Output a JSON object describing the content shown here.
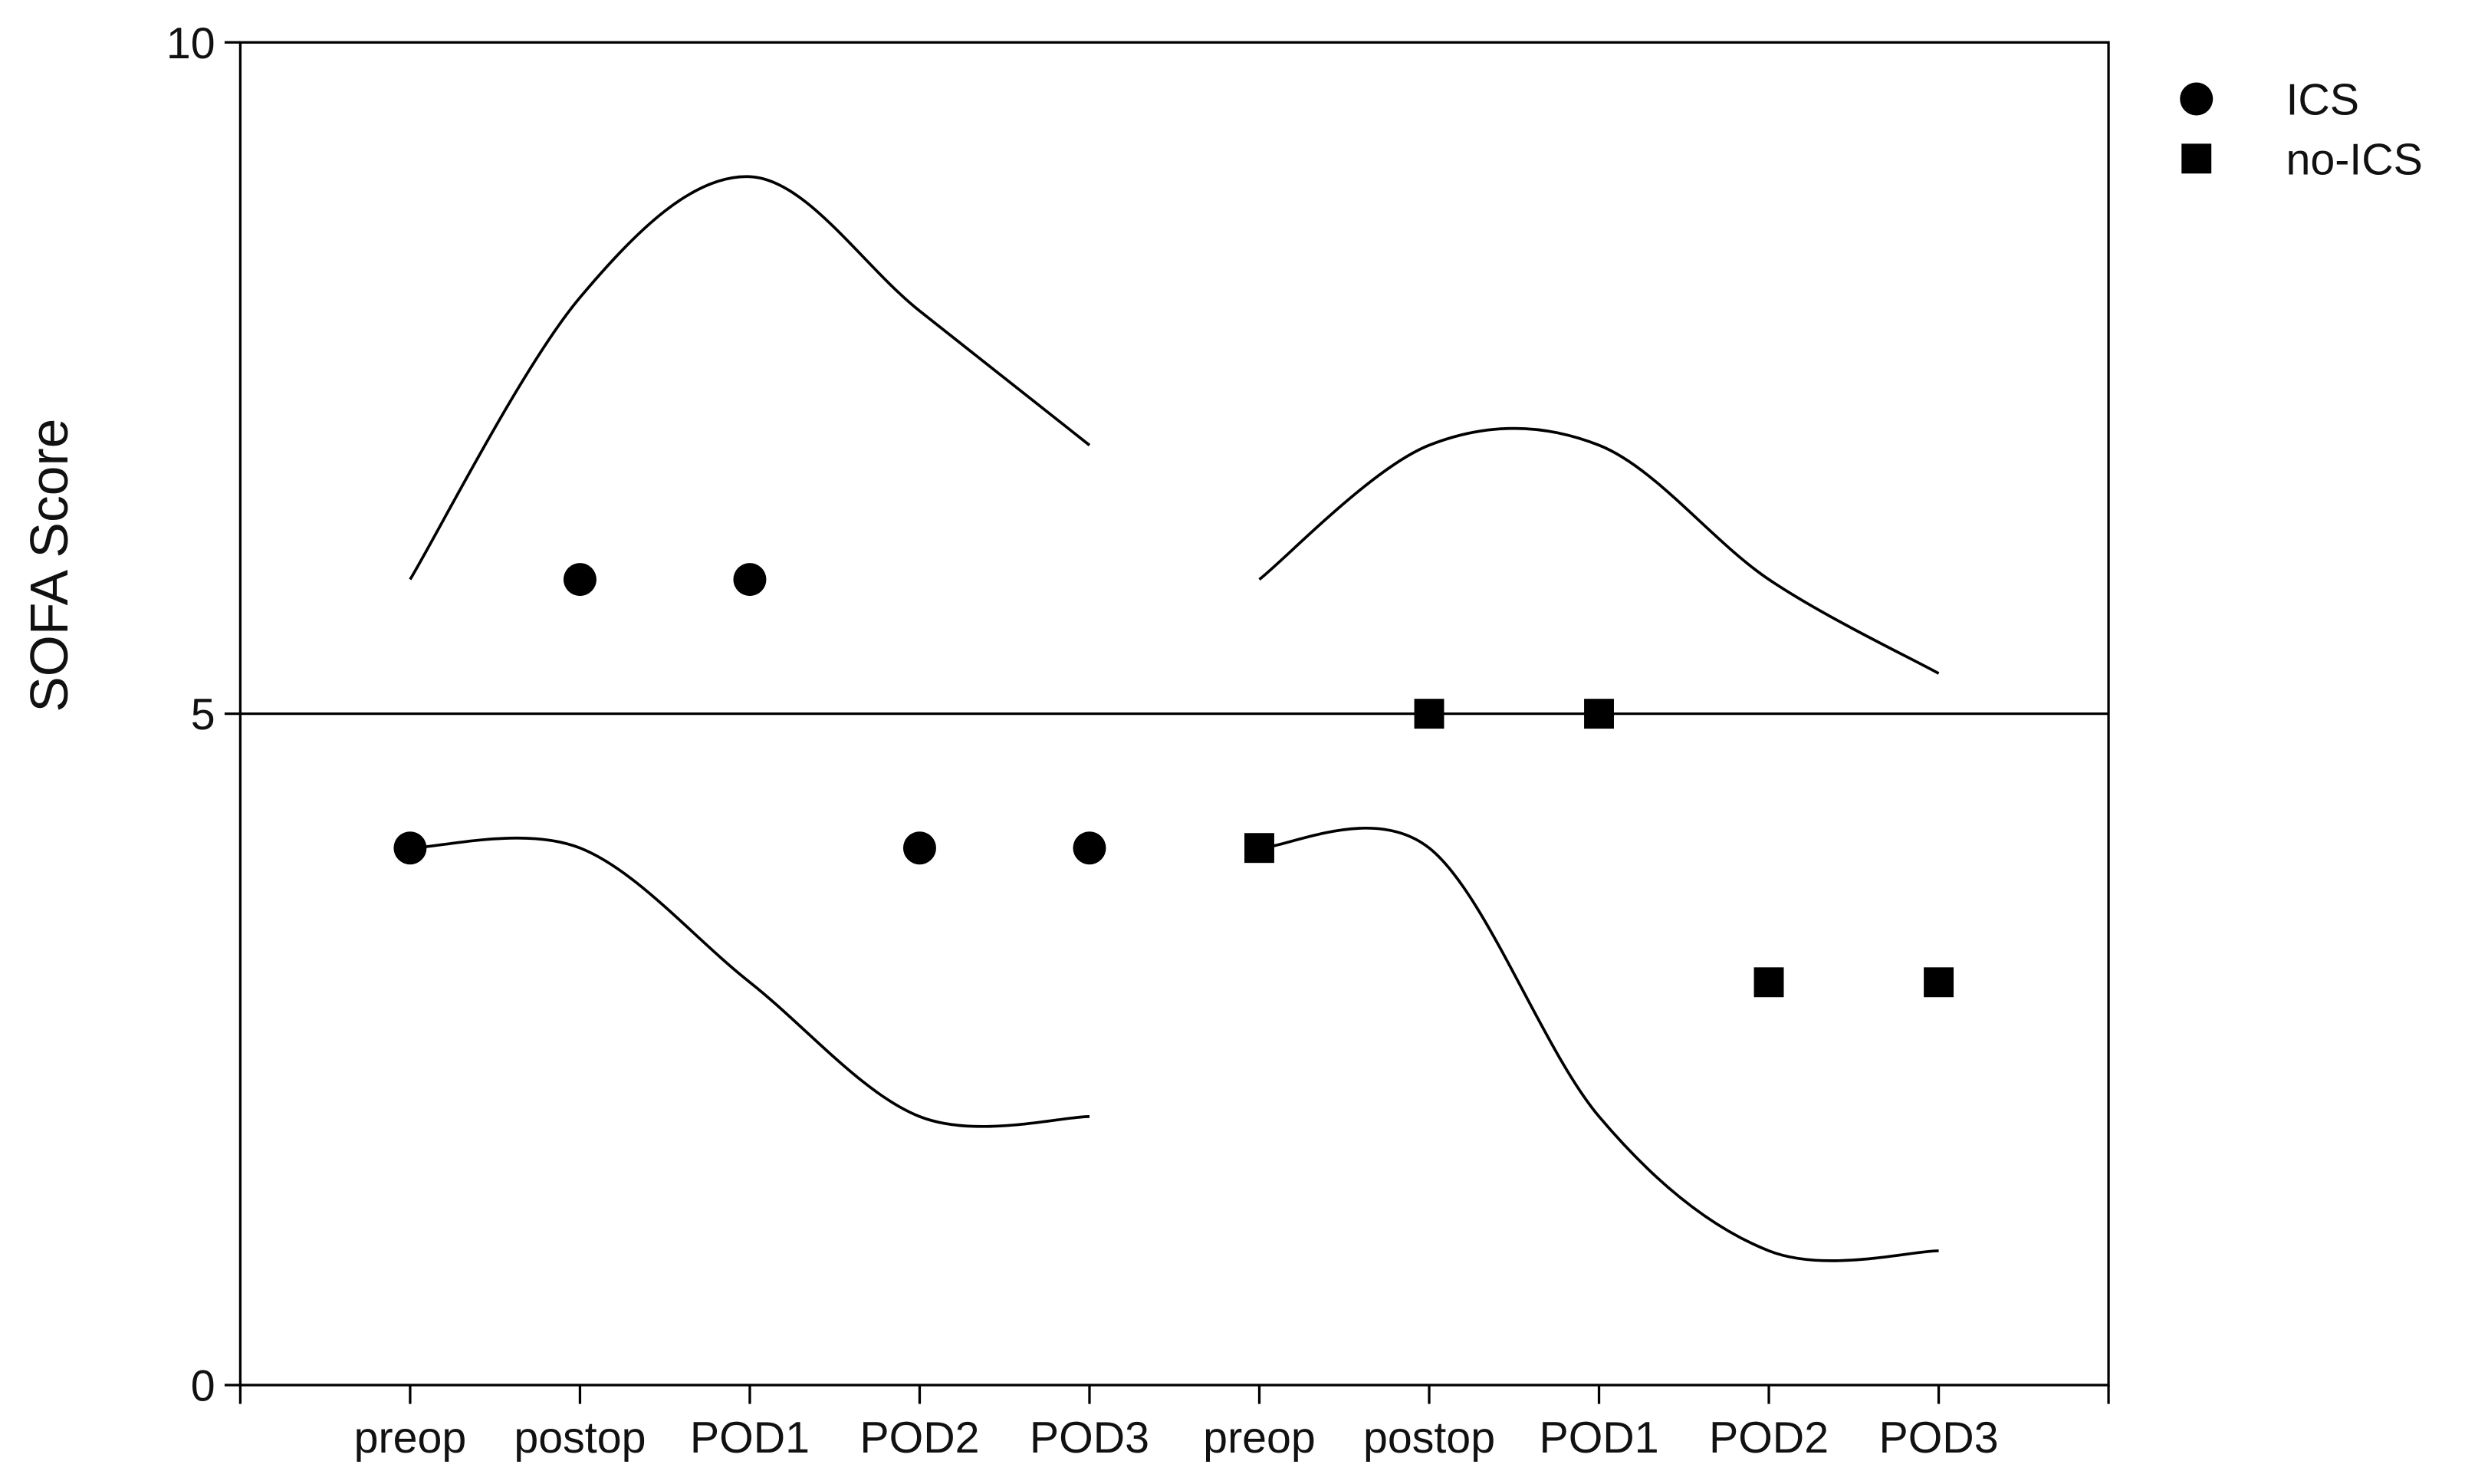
{
  "chart_data": {
    "type": "scatter",
    "y_label": "SOFA Score",
    "categories": [
      "preop",
      "postop",
      "POD1",
      "POD2",
      "POD3",
      "preop",
      "postop",
      "POD1",
      "POD2",
      "POD3"
    ],
    "ylim": [
      0,
      10
    ],
    "yticks": [
      0,
      5,
      10
    ],
    "reference_line": 5,
    "series": [
      {
        "name": "ICS",
        "marker": "circle",
        "color": "#000000",
        "values": [
          4,
          6,
          6,
          4,
          4,
          null,
          null,
          null,
          null,
          null
        ]
      },
      {
        "name": "no-ICS",
        "marker": "square",
        "color": "#000000",
        "values": [
          null,
          null,
          null,
          null,
          null,
          4,
          5,
          5,
          3,
          3
        ]
      }
    ],
    "curves": [
      {
        "color": "#000000",
        "values": [
          6,
          8.1,
          9,
          8,
          7,
          null,
          null,
          null,
          null,
          null
        ]
      },
      {
        "color": "#000000",
        "values": [
          4,
          4,
          3,
          2,
          2,
          null,
          null,
          null,
          null,
          null
        ]
      },
      {
        "color": "#000000",
        "values": [
          null,
          null,
          null,
          null,
          null,
          6,
          7,
          7,
          6,
          5.3
        ]
      },
      {
        "color": "#000000",
        "values": [
          null,
          null,
          null,
          null,
          null,
          4,
          4,
          2,
          1,
          1
        ]
      }
    ]
  }
}
